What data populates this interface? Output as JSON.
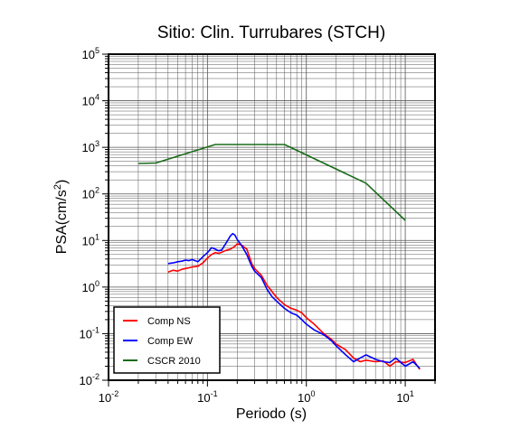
{
  "chart_data": {
    "type": "line",
    "title": "Sitio: Clin. Turrubares (STCH)",
    "xlabel": "Periodo (s)",
    "ylabel": "PSA(cm/s²)",
    "xscale": "log",
    "yscale": "log",
    "xlim": [
      0.01,
      20
    ],
    "ylim": [
      0.01,
      100000
    ],
    "x_ticks": [
      "10-2",
      "10-1",
      "100",
      "101"
    ],
    "y_ticks": [
      "10-2",
      "10-1",
      "100",
      "101",
      "102",
      "103",
      "104",
      "105"
    ],
    "grid": true,
    "legend_position": "bottom-left",
    "series": [
      {
        "name": "Comp NS",
        "color": "#ff0000",
        "x": [
          0.04,
          0.045,
          0.05,
          0.055,
          0.06,
          0.065,
          0.07,
          0.08,
          0.09,
          0.1,
          0.11,
          0.12,
          0.13,
          0.14,
          0.15,
          0.16,
          0.17,
          0.18,
          0.19,
          0.2,
          0.22,
          0.25,
          0.28,
          0.3,
          0.35,
          0.4,
          0.45,
          0.5,
          0.6,
          0.7,
          0.8,
          0.9,
          1.0,
          1.2,
          1.5,
          1.8,
          2.0,
          2.5,
          3.0,
          3.5,
          4.0,
          5.0,
          6.0,
          7.0,
          8.0,
          10.0,
          12.0,
          14.0
        ],
        "y": [
          2.1,
          2.3,
          2.2,
          2.4,
          2.5,
          2.6,
          2.7,
          2.8,
          3.3,
          4.2,
          5.0,
          5.5,
          5.3,
          5.6,
          6.0,
          6.3,
          6.5,
          7.0,
          7.5,
          8.5,
          8.0,
          6.5,
          3.2,
          2.5,
          1.8,
          1.1,
          0.8,
          0.6,
          0.42,
          0.35,
          0.32,
          0.28,
          0.22,
          0.16,
          0.1,
          0.075,
          0.06,
          0.045,
          0.03,
          0.025,
          0.027,
          0.025,
          0.026,
          0.02,
          0.025,
          0.024,
          0.028,
          0.017
        ]
      },
      {
        "name": "Comp EW",
        "color": "#0000ff",
        "x": [
          0.04,
          0.045,
          0.05,
          0.055,
          0.06,
          0.065,
          0.07,
          0.08,
          0.09,
          0.1,
          0.11,
          0.12,
          0.13,
          0.14,
          0.15,
          0.16,
          0.17,
          0.18,
          0.19,
          0.2,
          0.22,
          0.25,
          0.28,
          0.3,
          0.35,
          0.4,
          0.45,
          0.5,
          0.6,
          0.7,
          0.8,
          0.9,
          1.0,
          1.2,
          1.5,
          1.8,
          2.0,
          2.5,
          3.0,
          3.5,
          4.0,
          5.0,
          6.0,
          7.0,
          8.0,
          10.0,
          12.0,
          14.0
        ],
        "y": [
          3.2,
          3.3,
          3.5,
          3.6,
          3.8,
          3.7,
          3.9,
          3.5,
          4.5,
          5.5,
          7.0,
          6.5,
          6.0,
          6.3,
          8.0,
          10.0,
          12.5,
          14.0,
          13.0,
          10.5,
          8.0,
          5.0,
          2.8,
          2.2,
          1.6,
          0.9,
          0.62,
          0.5,
          0.35,
          0.28,
          0.25,
          0.2,
          0.16,
          0.12,
          0.095,
          0.07,
          0.055,
          0.035,
          0.025,
          0.03,
          0.035,
          0.028,
          0.025,
          0.024,
          0.03,
          0.02,
          0.025,
          0.018
        ]
      },
      {
        "name": "CSCR 2010",
        "color": "#1a6b1a",
        "x": [
          0.02,
          0.03,
          0.12,
          0.6,
          4.0,
          10.0
        ],
        "y": [
          450,
          460,
          1150,
          1150,
          170,
          27
        ]
      }
    ]
  }
}
